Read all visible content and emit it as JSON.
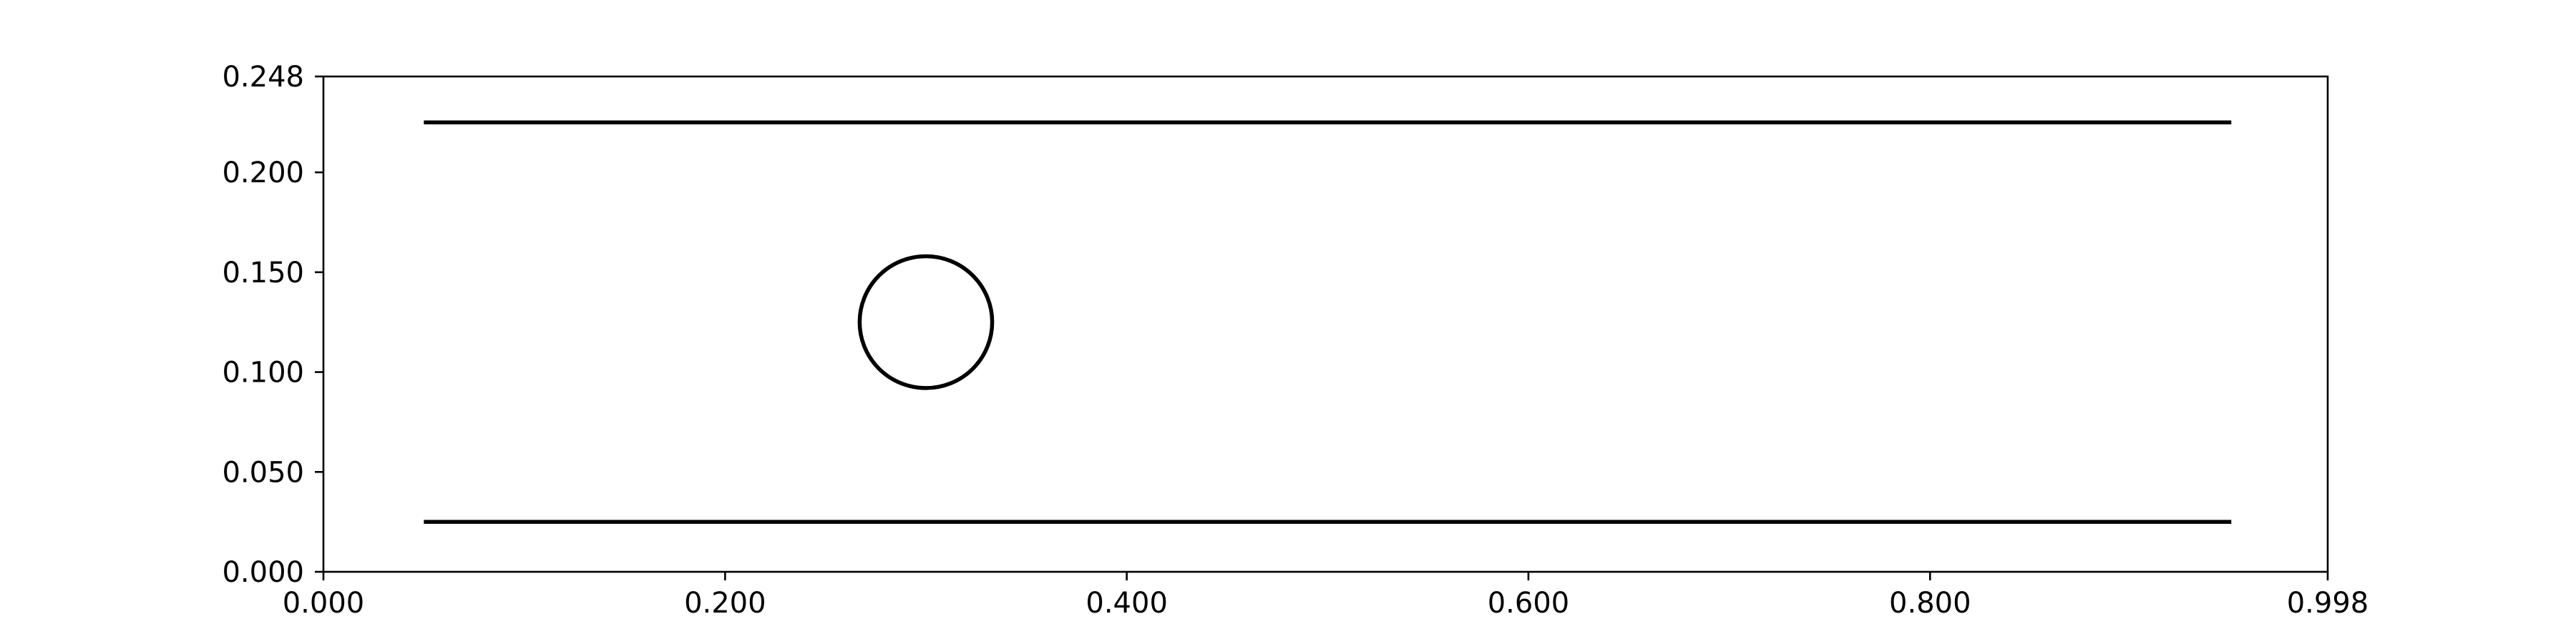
{
  "chart_data": {
    "type": "line",
    "title": "",
    "xlabel": "",
    "ylabel": "",
    "xlim": [
      0.0,
      0.998
    ],
    "ylim": [
      0.0,
      0.248
    ],
    "grid": false,
    "legend": "none",
    "x_ticks": [
      {
        "value": 0.0,
        "label": "0.000"
      },
      {
        "value": 0.2,
        "label": "0.200"
      },
      {
        "value": 0.4,
        "label": "0.400"
      },
      {
        "value": 0.6,
        "label": "0.600"
      },
      {
        "value": 0.8,
        "label": "0.800"
      },
      {
        "value": 0.998,
        "label": "0.998"
      }
    ],
    "y_ticks": [
      {
        "value": 0.0,
        "label": "0.000"
      },
      {
        "value": 0.05,
        "label": "0.050"
      },
      {
        "value": 0.1,
        "label": "0.100"
      },
      {
        "value": 0.15,
        "label": "0.150"
      },
      {
        "value": 0.2,
        "label": "0.200"
      },
      {
        "value": 0.248,
        "label": "0.248"
      }
    ],
    "lines": [
      {
        "x": [
          0.05,
          0.95
        ],
        "y": [
          0.225,
          0.225
        ],
        "color": "#000000"
      },
      {
        "x": [
          0.05,
          0.95
        ],
        "y": [
          0.025,
          0.025
        ],
        "color": "#000000"
      }
    ],
    "circles": [
      {
        "cx": 0.3,
        "cy": 0.125,
        "r": 0.033,
        "color": "#000000"
      }
    ]
  }
}
